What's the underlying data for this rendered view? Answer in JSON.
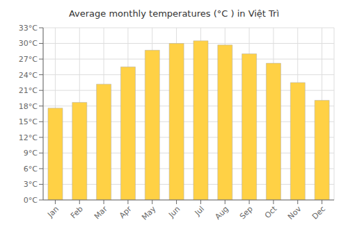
{
  "chart_data": {
    "type": "bar",
    "title": "Average monthly temperatures (°C ) in Việt Trì",
    "categories": [
      "Jan",
      "Feb",
      "Mar",
      "Apr",
      "May",
      "Jun",
      "Jul",
      "Aug",
      "Sep",
      "Oct",
      "Nov",
      "Dec"
    ],
    "values": [
      17.6,
      18.7,
      22.2,
      25.5,
      28.7,
      30.0,
      30.5,
      29.7,
      28.0,
      26.2,
      22.5,
      19.1
    ],
    "color": "#FFD145",
    "ylim": [
      0,
      33
    ],
    "yticks": [
      {
        "value": 0,
        "label": "0°C"
      },
      {
        "value": 3,
        "label": "3°C"
      },
      {
        "value": 6,
        "label": "6°C"
      },
      {
        "value": 9,
        "label": "9°C"
      },
      {
        "value": 12,
        "label": "12°C"
      },
      {
        "value": 15,
        "label": "15°C"
      },
      {
        "value": 18,
        "label": "18°C"
      },
      {
        "value": 21,
        "label": "21°C"
      },
      {
        "value": 24,
        "label": "24°C"
      },
      {
        "value": 27,
        "label": "27°C"
      },
      {
        "value": 30,
        "label": "30°C"
      },
      {
        "value": 33,
        "label": "33°C"
      }
    ],
    "grid": true
  }
}
